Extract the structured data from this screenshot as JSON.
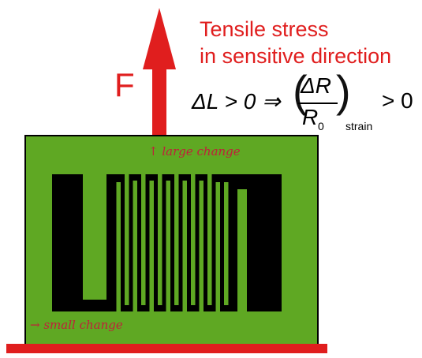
{
  "title": {
    "line1": "Tensile stress",
    "line2": "in sensitive direction"
  },
  "force_label": "F",
  "equation": {
    "left": "ΔL > 0 ⇒",
    "numerator": "ΔR",
    "denominator": "R",
    "denominator_sub": "0",
    "subscript": "strain",
    "right": "> 0"
  },
  "annotations": {
    "large": "large change",
    "small": "small change"
  },
  "colors": {
    "red": "#e01e1e",
    "green": "#5fa823",
    "black": "#000000",
    "handwriting": "#c0203a"
  }
}
